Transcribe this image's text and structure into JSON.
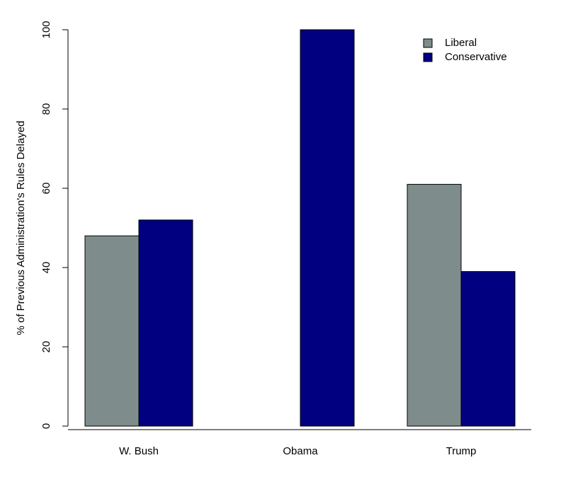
{
  "chart_data": {
    "type": "bar",
    "y_label": "% of Previous Administration's Rules Delayed",
    "categories": [
      "W. Bush",
      "Obama",
      "Trump"
    ],
    "series": [
      {
        "name": "Liberal",
        "color": "#7f8c8c",
        "values": [
          48,
          0,
          61
        ]
      },
      {
        "name": "Conservative",
        "color": "#000080",
        "values": [
          52,
          100,
          39
        ]
      }
    ],
    "ylim": [
      0,
      100
    ],
    "yticks": [
      0,
      20,
      40,
      60,
      80,
      100
    ],
    "legend": "top-right"
  }
}
